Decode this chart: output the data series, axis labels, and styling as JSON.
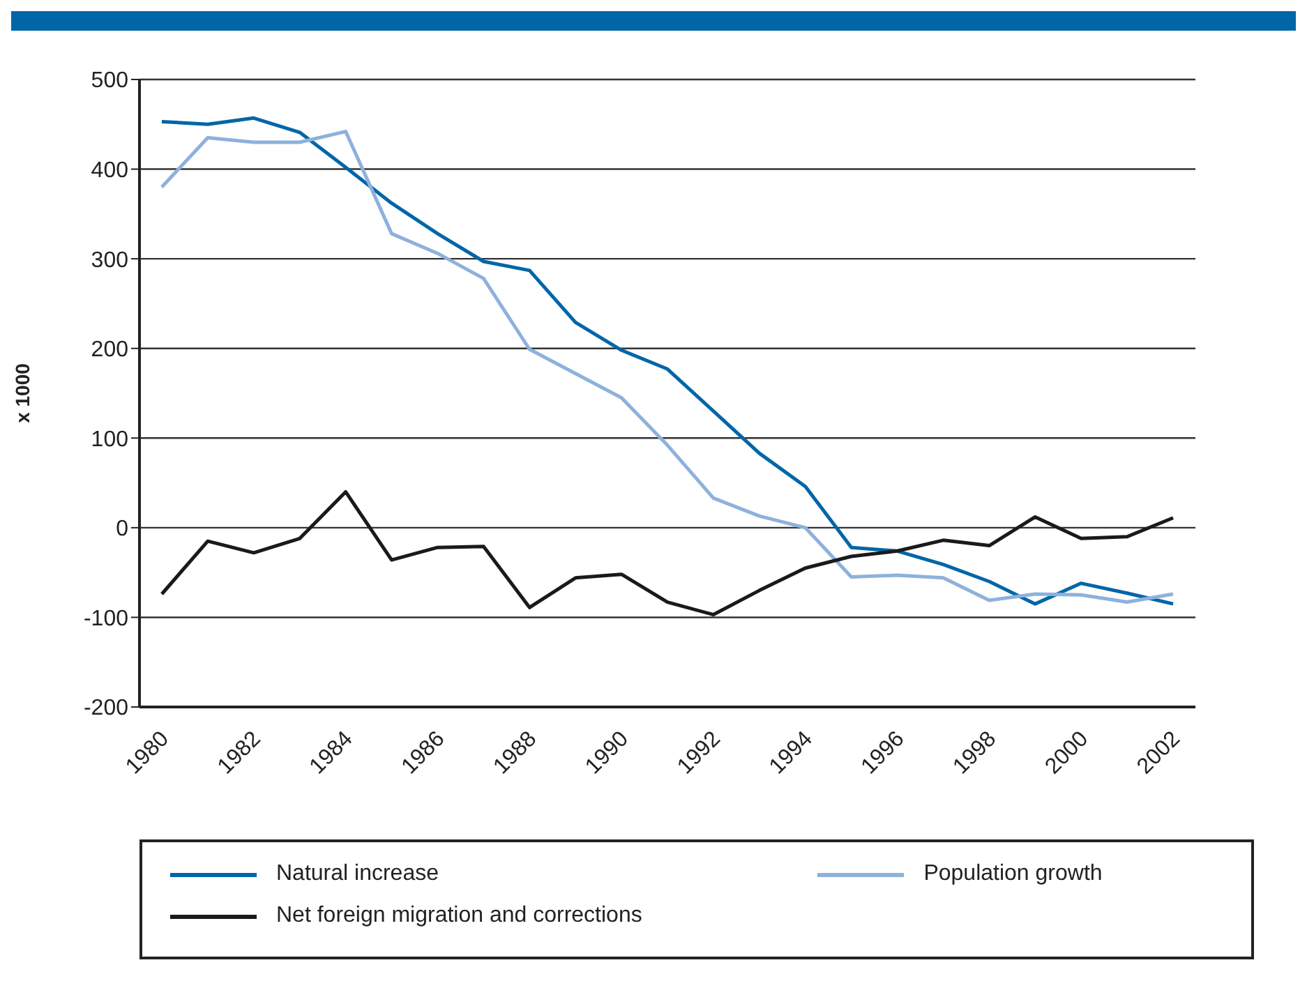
{
  "chart_data": {
    "type": "line",
    "ylabel": "x 1000",
    "categories": [
      "1980",
      null,
      "1982",
      null,
      "1984",
      null,
      "1986",
      null,
      "1988",
      null,
      "1990",
      null,
      "1992",
      null,
      "1994",
      null,
      "1996",
      null,
      "1998",
      null,
      "2000",
      null,
      "2002"
    ],
    "series": [
      {
        "name": "Natural increase",
        "color": "#0066a8",
        "values": [
          453,
          450,
          457,
          441,
          402,
          362,
          328,
          297,
          287,
          229,
          198,
          177,
          130,
          83,
          46,
          -22,
          -26,
          -41,
          -60,
          -85,
          -62,
          -73,
          -85
        ]
      },
      {
        "name": "Population growth",
        "color": "#8eb1dc",
        "values": [
          380,
          435,
          430,
          430,
          442,
          328,
          306,
          278,
          199,
          172,
          145,
          92,
          33,
          13,
          0,
          -55,
          -53,
          -56,
          -81,
          -74,
          -75,
          -83,
          -74
        ]
      },
      {
        "name": "Net foreign migration and corrections",
        "color": "#1a1a1a",
        "values": [
          -74,
          -15,
          -28,
          -12,
          40,
          -36,
          -22,
          -21,
          -89,
          -56,
          -52,
          -83,
          -97,
          -70,
          -45,
          -32,
          -26,
          -14,
          -20,
          12,
          -12,
          -10,
          11
        ]
      }
    ],
    "ylim": [
      -200,
      500
    ],
    "yticks": [
      -200,
      -100,
      0,
      100,
      200,
      300,
      400,
      500
    ],
    "grid": "y",
    "legend": "bottom",
    "marker": "none",
    "line_style": "solid"
  }
}
